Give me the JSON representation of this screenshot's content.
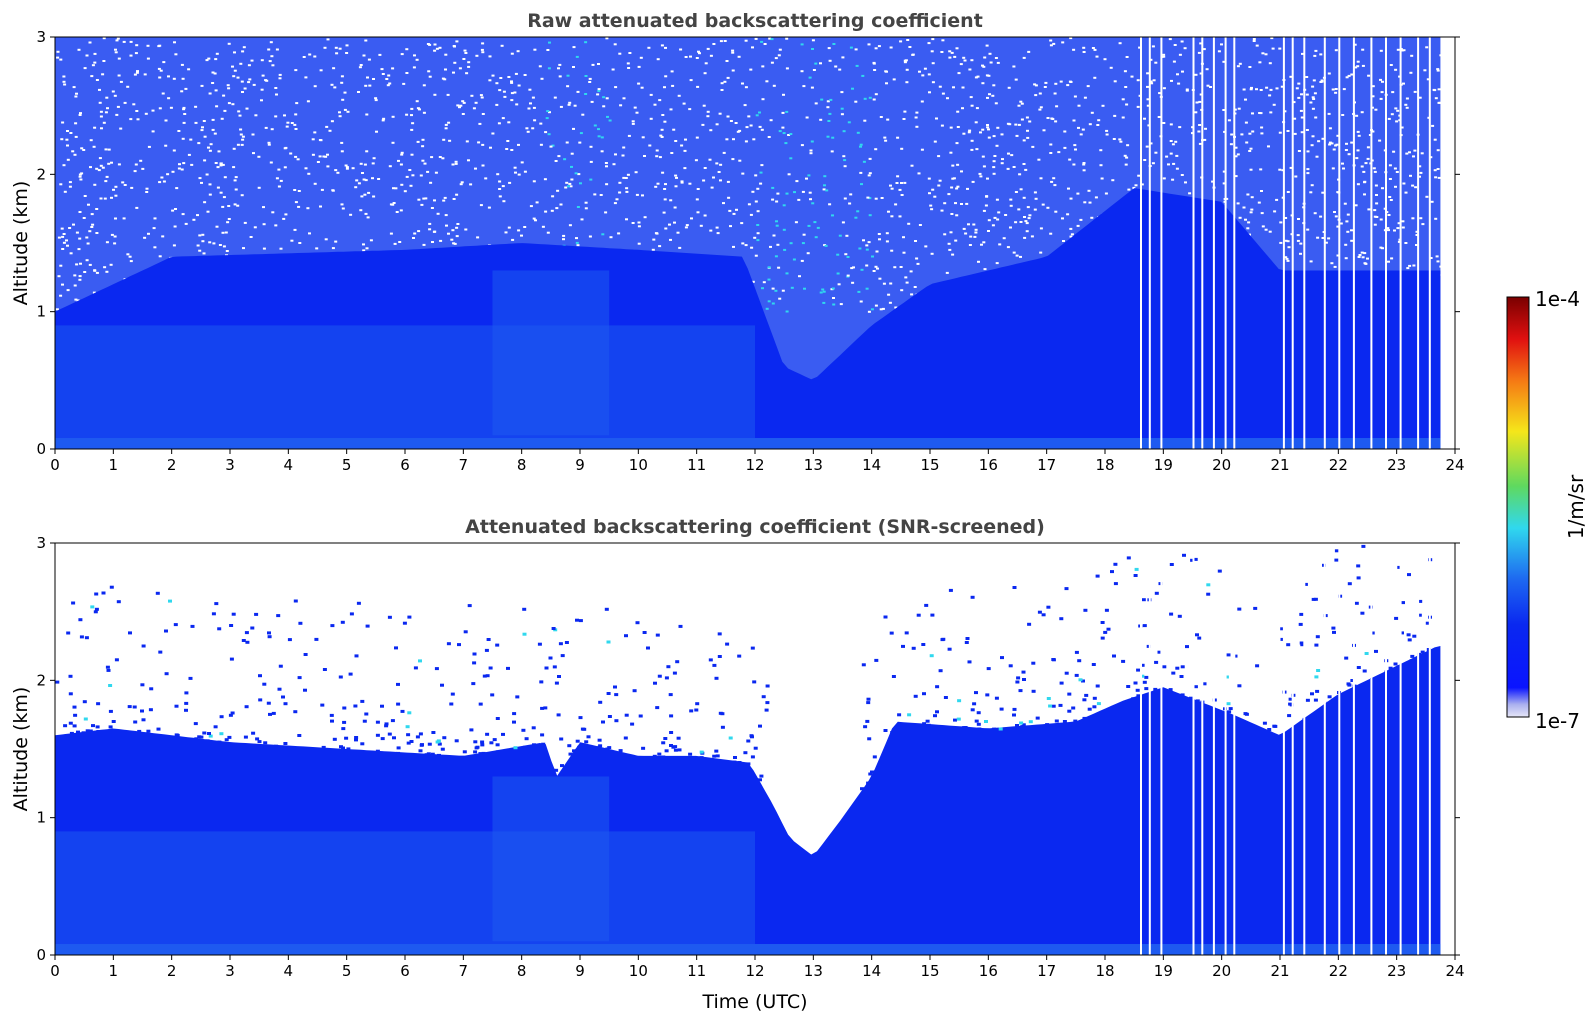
{
  "colors": {
    "scale_low": "#e6e6f7",
    "background_blue": "#0a28f0",
    "mid_blue": "#1e5af0",
    "cyan": "#30d8ee",
    "green": "#5fd95f",
    "yellow": "#f5e61a",
    "orange": "#f57a14",
    "red": "#cc0000",
    "dark_red": "#7a0000",
    "title_text": "#444444"
  },
  "colorbar": {
    "max_label": "1e-4",
    "min_label": "1e-7",
    "unit_label": "1/m/sr",
    "scale": "log",
    "range": [
      1e-07,
      0.0001
    ]
  },
  "chart_data": [
    {
      "type": "heatmap",
      "title": "Raw attenuated backscattering coefficient",
      "xlabel": "",
      "ylabel": "Altitude (km)",
      "xlim": [
        0,
        24
      ],
      "ylim": [
        0,
        3
      ],
      "x_ticks": [
        "0",
        "1",
        "2",
        "3",
        "4",
        "5",
        "6",
        "7",
        "8",
        "9",
        "10",
        "11",
        "12",
        "13",
        "14",
        "15",
        "16",
        "17",
        "18",
        "19",
        "20",
        "21",
        "22",
        "23",
        "24"
      ],
      "y_ticks": [
        "0",
        "1",
        "2",
        "3"
      ],
      "data_end_hour": 23.75,
      "noisy_upper_layer_km": [
        1.3,
        3.0
      ],
      "boundary_layer_top_km": [
        [
          0,
          1.0
        ],
        [
          2,
          1.4
        ],
        [
          6,
          1.45
        ],
        [
          8,
          1.5
        ],
        [
          10,
          1.45
        ],
        [
          11.8,
          1.4
        ],
        [
          12.5,
          0.6
        ],
        [
          13.0,
          0.5
        ],
        [
          14,
          0.9
        ],
        [
          15,
          1.2
        ],
        [
          17,
          1.4
        ],
        [
          18.5,
          1.9
        ],
        [
          20,
          1.8
        ],
        [
          21,
          1.3
        ],
        [
          23.7,
          1.3
        ]
      ],
      "data_gaps_hours": [
        18.6,
        18.75,
        18.95,
        19.5,
        19.65,
        19.85,
        20.05,
        20.2,
        21.05,
        21.2,
        21.4,
        21.75,
        22.0,
        22.25,
        22.55,
        22.8,
        23.05,
        23.35,
        23.55
      ]
    },
    {
      "type": "heatmap",
      "title": "Attenuated backscattering coefficient (SNR-screened)",
      "xlabel": "Time (UTC)",
      "ylabel": "Altitude (km)",
      "xlim": [
        0,
        24
      ],
      "ylim": [
        0,
        3
      ],
      "x_ticks": [
        "0",
        "1",
        "2",
        "3",
        "4",
        "5",
        "6",
        "7",
        "8",
        "9",
        "10",
        "11",
        "12",
        "13",
        "14",
        "15",
        "16",
        "17",
        "18",
        "19",
        "20",
        "21",
        "22",
        "23",
        "24"
      ],
      "y_ticks": [
        "0",
        "1",
        "2",
        "3"
      ],
      "data_end_hour": 23.75,
      "screened_layer_top_km": [
        [
          0,
          1.6
        ],
        [
          1,
          1.65
        ],
        [
          3,
          1.55
        ],
        [
          5,
          1.5
        ],
        [
          7,
          1.45
        ],
        [
          8.4,
          1.55
        ],
        [
          8.6,
          1.3
        ],
        [
          9,
          1.55
        ],
        [
          10,
          1.45
        ],
        [
          11,
          1.45
        ],
        [
          11.9,
          1.4
        ],
        [
          12.3,
          1.1
        ],
        [
          12.6,
          0.85
        ],
        [
          13.0,
          0.72
        ],
        [
          13.5,
          1.0
        ],
        [
          14,
          1.3
        ],
        [
          14.4,
          1.7
        ],
        [
          16,
          1.65
        ],
        [
          17.5,
          1.7
        ],
        [
          18.3,
          1.85
        ],
        [
          19,
          1.95
        ],
        [
          20.2,
          1.75
        ],
        [
          21,
          1.6
        ],
        [
          22,
          1.9
        ],
        [
          23.7,
          2.25
        ]
      ],
      "data_gaps_hours": [
        18.6,
        18.75,
        18.95,
        19.5,
        19.65,
        19.85,
        20.05,
        20.2,
        21.05,
        21.2,
        21.4,
        21.75,
        22.0,
        22.25,
        22.55,
        22.8,
        23.05,
        23.35,
        23.55
      ]
    }
  ]
}
